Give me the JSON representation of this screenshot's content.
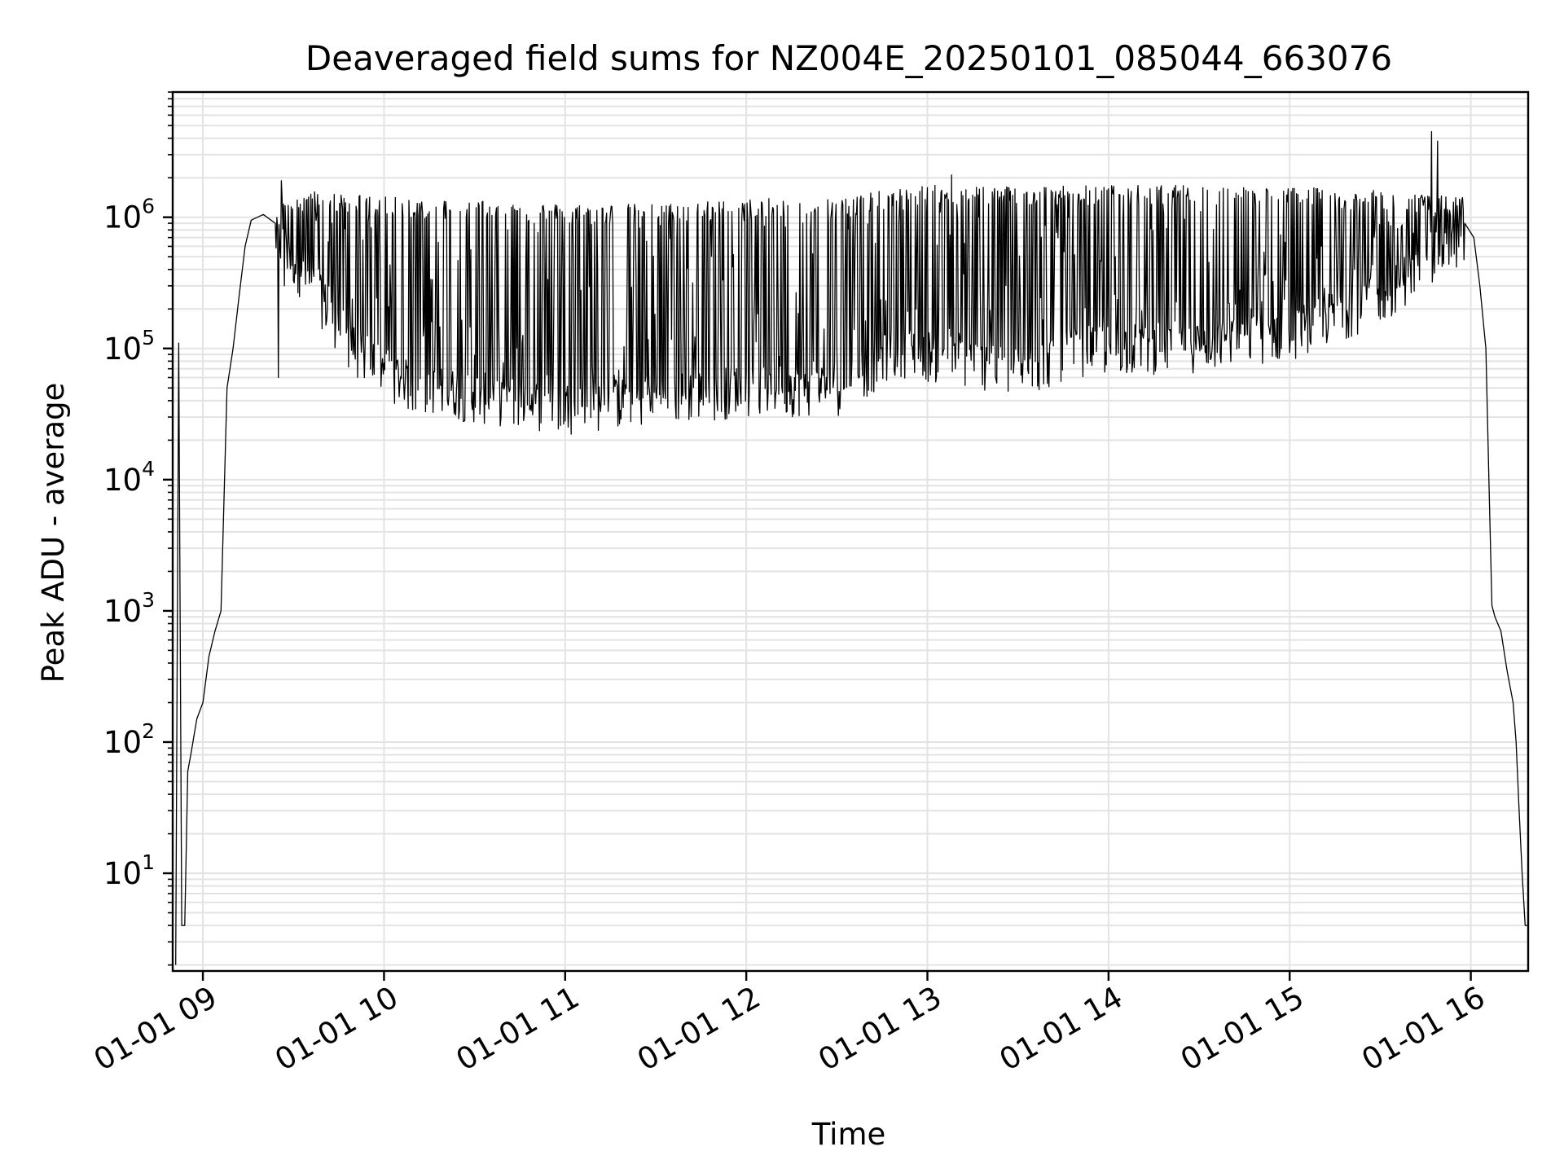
{
  "chart_data": {
    "type": "line",
    "title": "Deaveraged field sums for NZ004E_20250101_085044_663076",
    "xlabel": "Time",
    "ylabel": "Peak ADU - average",
    "yscale": "log",
    "ylim": [
      1.8,
      9000000
    ],
    "xlim": [
      "2025-01-01 08:50",
      "2025-01-01 16:19"
    ],
    "x_ticks": [
      "01-01 09",
      "01-01 10",
      "01-01 11",
      "01-01 12",
      "01-01 13",
      "01-01 14",
      "01-01 15",
      "01-01 16"
    ],
    "x_tick_times": [
      "2025-01-01 09:00",
      "2025-01-01 10:00",
      "2025-01-01 11:00",
      "2025-01-01 12:00",
      "2025-01-01 13:00",
      "2025-01-01 14:00",
      "2025-01-01 15:00",
      "2025-01-01 16:00"
    ],
    "y_ticks": [
      {
        "base": "10",
        "exp": "1",
        "value": 10
      },
      {
        "base": "10",
        "exp": "2",
        "value": 100
      },
      {
        "base": "10",
        "exp": "3",
        "value": 1000
      },
      {
        "base": "10",
        "exp": "4",
        "value": 10000
      },
      {
        "base": "10",
        "exp": "5",
        "value": 100000
      },
      {
        "base": "10",
        "exp": "6",
        "value": 1000000
      }
    ],
    "grid": true,
    "line_color": "#000000",
    "grid_color": "#e3e3e3",
    "series": [
      {
        "envelope_upper": {
          "x": [
            "2025-01-01 09:15",
            "2025-01-01 09:30",
            "2025-01-01 10:00",
            "2025-01-01 10:30",
            "2025-01-01 11:00",
            "2025-01-01 11:30",
            "2025-01-01 12:00",
            "2025-01-01 12:30",
            "2025-01-01 13:00",
            "2025-01-01 13:30",
            "2025-01-01 14:00",
            "2025-01-01 14:30",
            "2025-01-01 15:00",
            "2025-01-01 15:30",
            "2025-01-01 15:55"
          ],
          "y": [
            1000000,
            1500000,
            1300000,
            1250000,
            1150000,
            1150000,
            1250000,
            1300000,
            1600000,
            1600000,
            1600000,
            1600000,
            1550000,
            1450000,
            1300000
          ]
        },
        "envelope_lower": {
          "x": [
            "2025-01-01 09:25",
            "2025-01-01 09:35",
            "2025-01-01 09:50",
            "2025-01-01 10:10",
            "2025-01-01 10:40",
            "2025-01-01 11:00",
            "2025-01-01 11:30",
            "2025-01-01 12:00",
            "2025-01-01 12:30",
            "2025-01-01 12:50",
            "2025-01-01 13:10",
            "2025-01-01 13:30",
            "2025-01-01 13:50",
            "2025-01-01 14:30",
            "2025-01-01 15:00",
            "2025-01-01 15:30",
            "2025-01-01 15:55"
          ],
          "y": [
            400000,
            200000,
            60000,
            30000,
            25000,
            22000,
            25000,
            30000,
            30000,
            60000,
            50000,
            40000,
            60000,
            65000,
            80000,
            150000,
            400000
          ]
        },
        "ramp_up": {
          "x": [
            "2025-01-01 08:51",
            "2025-01-01 08:52",
            "2025-01-01 08:53",
            "2025-01-01 08:54",
            "2025-01-01 08:55",
            "2025-01-01 08:56",
            "2025-01-01 08:58",
            "2025-01-01 09:00",
            "2025-01-01 09:02",
            "2025-01-01 09:04",
            "2025-01-01 09:06",
            "2025-01-01 09:08",
            "2025-01-01 09:10",
            "2025-01-01 09:12",
            "2025-01-01 09:14",
            "2025-01-01 09:16",
            "2025-01-01 09:20",
            "2025-01-01 09:24"
          ],
          "y": [
            2,
            110000,
            4,
            4,
            60,
            80,
            150,
            200,
            450,
            700,
            1000,
            50000,
            100000,
            250000,
            600000,
            950000,
            1050000,
            900000
          ]
        },
        "ramp_down": {
          "x": [
            "2025-01-01 15:58",
            "2025-01-01 16:01",
            "2025-01-01 16:03",
            "2025-01-01 16:05",
            "2025-01-01 16:06",
            "2025-01-01 16:07",
            "2025-01-01 16:08",
            "2025-01-01 16:10",
            "2025-01-01 16:12",
            "2025-01-01 16:14",
            "2025-01-01 16:15",
            "2025-01-01 16:16",
            "2025-01-01 16:17",
            "2025-01-01 16:18",
            "2025-01-01 16:19"
          ],
          "y": [
            900000,
            700000,
            300000,
            100000,
            10000,
            1100,
            900,
            700,
            350,
            200,
            100,
            30,
            10,
            4,
            4
          ]
        },
        "spikes": {
          "x": [
            "2025-01-01 09:25",
            "2025-01-01 09:26",
            "2025-01-01 09:27",
            "2025-01-01 13:08",
            "2025-01-01 15:47",
            "2025-01-01 15:49"
          ],
          "y": [
            60000,
            1900000,
            300000,
            2100000,
            4500000,
            3800000
          ]
        }
      }
    ]
  }
}
